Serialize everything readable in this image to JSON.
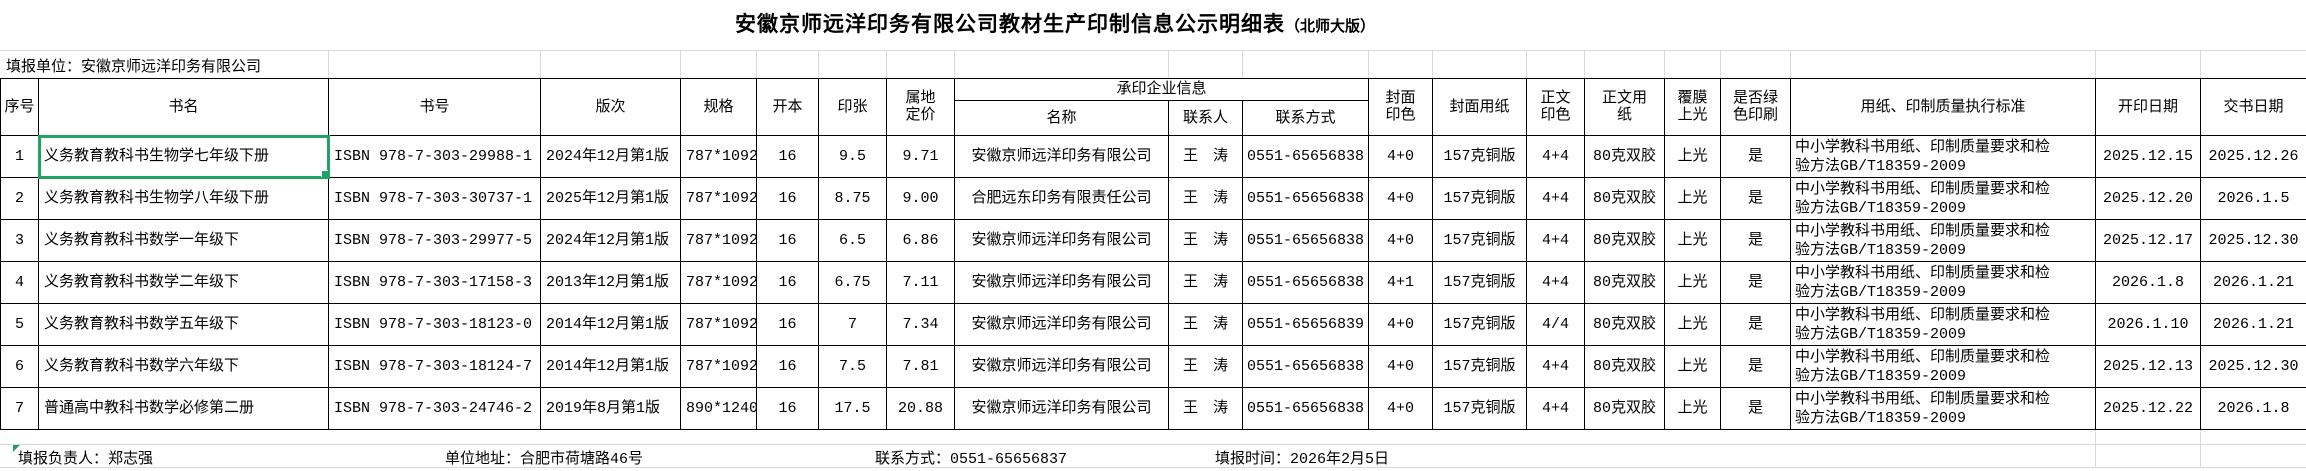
{
  "title": {
    "main": "安徽京师远洋印务有限公司教材生产印制信息公示明细表",
    "suffix": "（北师大版）"
  },
  "report_unit": "填报单位：安徽京师远洋印务有限公司",
  "table": {
    "group_header": "承印企业信息",
    "columns": [
      "序号",
      "书名",
      "书号",
      "版次",
      "规格",
      "开本",
      "印张",
      "属地定价",
      "名称",
      "联系人",
      "联系方式",
      "封面印色",
      "封面用纸",
      "正文印色",
      "正文用纸",
      "覆膜上光",
      "是否绿色印刷",
      "用纸、印制质量执行标准",
      "开印日期",
      "交书日期"
    ],
    "rows": [
      [
        "1",
        "义务教育教科书生物学七年级下册",
        "ISBN 978-7-303-29988-1",
        "2024年12月第1版",
        "787*1092",
        "16",
        "9.5",
        "9.71",
        "安徽京师远洋印务有限公司",
        "王　涛",
        "0551-65656838",
        "4+0",
        "157克铜版",
        "4+4",
        "80克双胶",
        "上光",
        "是",
        "中小学教科书用纸、印制质量要求和检验方法GB/T18359-2009",
        "2025.12.15",
        "2025.12.26"
      ],
      [
        "2",
        "义务教育教科书生物学八年级下册",
        "ISBN 978-7-303-30737-1",
        "2025年12月第1版",
        "787*1092",
        "16",
        "8.75",
        "9.00",
        "合肥远东印务有限责任公司",
        "王　涛",
        "0551-65656838",
        "4+0",
        "157克铜版",
        "4+4",
        "80克双胶",
        "上光",
        "是",
        "中小学教科书用纸、印制质量要求和检验方法GB/T18359-2009",
        "2025.12.20",
        "2026.1.5"
      ],
      [
        "3",
        "义务教育教科书数学一年级下",
        "ISBN 978-7-303-29977-5",
        "2024年12月第1版",
        "787*1092",
        "16",
        "6.5",
        "6.86",
        "安徽京师远洋印务有限公司",
        "王　涛",
        "0551-65656838",
        "4+0",
        "157克铜版",
        "4+4",
        "80克双胶",
        "上光",
        "是",
        "中小学教科书用纸、印制质量要求和检验方法GB/T18359-2009",
        "2025.12.17",
        "2025.12.30"
      ],
      [
        "4",
        "义务教育教科书数学二年级下",
        "ISBN 978-7-303-17158-3",
        "2013年12月第1版",
        "787*1092",
        "16",
        "6.75",
        "7.11",
        "安徽京师远洋印务有限公司",
        "王　涛",
        "0551-65656838",
        "4+1",
        "157克铜版",
        "4+4",
        "80克双胶",
        "上光",
        "是",
        "中小学教科书用纸、印制质量要求和检验方法GB/T18359-2009",
        "2026.1.8",
        "2026.1.21"
      ],
      [
        "5",
        "义务教育教科书数学五年级下",
        "ISBN 978-7-303-18123-0",
        "2014年12月第1版",
        "787*1092",
        "16",
        "7",
        "7.34",
        "安徽京师远洋印务有限公司",
        "王　涛",
        "0551-65656839",
        "4+0",
        "157克铜版",
        "4/4",
        "80克双胶",
        "上光",
        "是",
        "中小学教科书用纸、印制质量要求和检验方法GB/T18359-2009",
        "2026.1.10",
        "2026.1.21"
      ],
      [
        "6",
        "义务教育教科书数学六年级下",
        "ISBN 978-7-303-18124-7",
        "2014年12月第1版",
        "787*1092",
        "16",
        "7.5",
        "7.81",
        "安徽京师远洋印务有限公司",
        "王　涛",
        "0551-65656838",
        "4+0",
        "157克铜版",
        "4+4",
        "80克双胶",
        "上光",
        "是",
        "中小学教科书用纸、印制质量要求和检验方法GB/T18359-2009",
        "2025.12.13",
        "2025.12.30"
      ],
      [
        "7",
        "普通高中教科书数学必修第二册",
        "ISBN 978-7-303-24746-2",
        "2019年8月第1版",
        "890*1240",
        "16",
        "17.5",
        "20.88",
        "安徽京师远洋印务有限公司",
        "王　涛",
        "0551-65656838",
        "4+0",
        "157克铜版",
        "4+4",
        "80克双胶",
        "上光",
        "是",
        "中小学教科书用纸、印制质量要求和检验方法GB/T18359-2009",
        "2025.12.22",
        "2026.1.8"
      ]
    ],
    "selected_cell": {
      "row": 1,
      "column": "书名",
      "value": "义务教育教科书生物学七年级下册"
    }
  },
  "footer": {
    "owner": "填报负责人：郑志强",
    "address": "单位地址：合肥市荷塘路46号",
    "contact": "联系方式：0551-65656837",
    "date": "填报时间：2026年2月5日"
  },
  "colors": {
    "selection_green": "#21a366",
    "grid_gray": "#d9d9d9",
    "border_black": "#000000"
  }
}
